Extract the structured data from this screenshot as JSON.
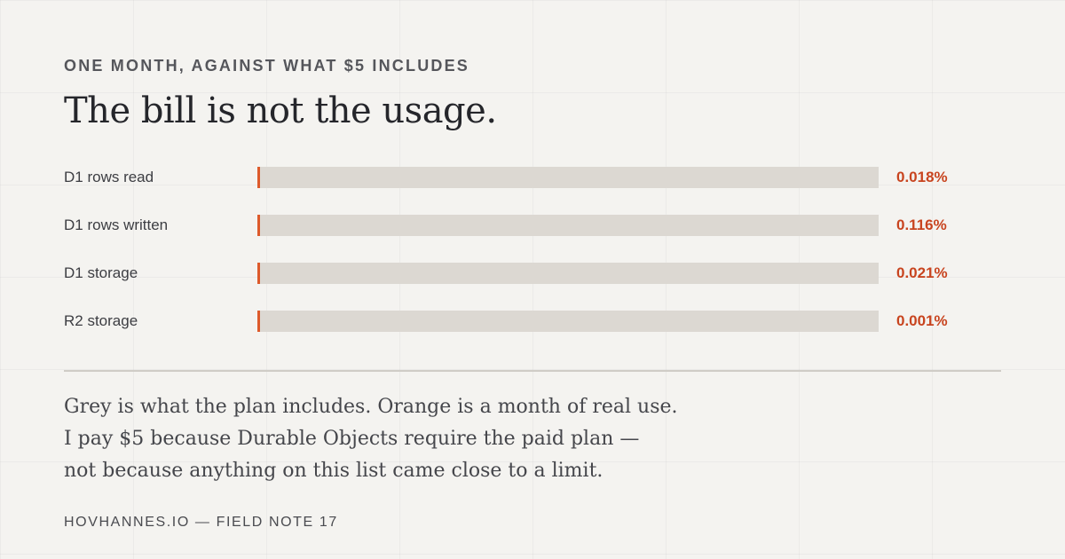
{
  "eyebrow": "ONE MONTH, AGAINST WHAT $5 INCLUDES",
  "headline": "The bill is not the usage.",
  "colors": {
    "included": "#dcd8d2",
    "usage": "#dd5a2b",
    "percent_text": "#c8441f"
  },
  "chart_data": {
    "type": "bar",
    "orientation": "horizontal",
    "categories": [
      "D1 rows read",
      "D1 rows written",
      "D1 storage",
      "R2 storage"
    ],
    "values": [
      0.018,
      0.116,
      0.021,
      0.001
    ],
    "labels": [
      "0.018%",
      "0.116%",
      "0.021%",
      "0.001%"
    ],
    "xlim": [
      0,
      100
    ],
    "grid": false
  },
  "body_lines": [
    "Grey is what the plan includes. Orange is a month of real use.",
    "I pay $5 because Durable Objects require the paid plan —",
    "not because anything on this list came close to a limit."
  ],
  "footer": "HOVHANNES.IO — FIELD NOTE 17"
}
